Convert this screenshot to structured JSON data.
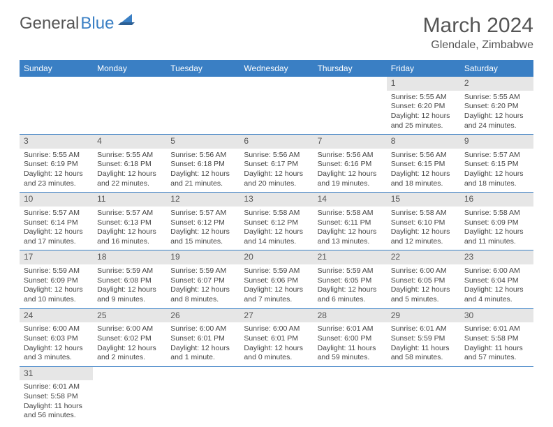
{
  "logo": {
    "text1": "General",
    "text2": "Blue"
  },
  "title": "March 2024",
  "location": "Glendale, Zimbabwe",
  "colors": {
    "headerBg": "#3a7fc4",
    "headerText": "#ffffff",
    "dayNumBg": "#e6e6e6",
    "bodyText": "#444444",
    "border": "#3a7fc4"
  },
  "weekdays": [
    "Sunday",
    "Monday",
    "Tuesday",
    "Wednesday",
    "Thursday",
    "Friday",
    "Saturday"
  ],
  "weeks": [
    [
      null,
      null,
      null,
      null,
      null,
      {
        "n": "1",
        "sr": "5:55 AM",
        "ss": "6:20 PM",
        "dl": "12 hours and 25 minutes."
      },
      {
        "n": "2",
        "sr": "5:55 AM",
        "ss": "6:20 PM",
        "dl": "12 hours and 24 minutes."
      }
    ],
    [
      {
        "n": "3",
        "sr": "5:55 AM",
        "ss": "6:19 PM",
        "dl": "12 hours and 23 minutes."
      },
      {
        "n": "4",
        "sr": "5:55 AM",
        "ss": "6:18 PM",
        "dl": "12 hours and 22 minutes."
      },
      {
        "n": "5",
        "sr": "5:56 AM",
        "ss": "6:18 PM",
        "dl": "12 hours and 21 minutes."
      },
      {
        "n": "6",
        "sr": "5:56 AM",
        "ss": "6:17 PM",
        "dl": "12 hours and 20 minutes."
      },
      {
        "n": "7",
        "sr": "5:56 AM",
        "ss": "6:16 PM",
        "dl": "12 hours and 19 minutes."
      },
      {
        "n": "8",
        "sr": "5:56 AM",
        "ss": "6:15 PM",
        "dl": "12 hours and 18 minutes."
      },
      {
        "n": "9",
        "sr": "5:57 AM",
        "ss": "6:15 PM",
        "dl": "12 hours and 18 minutes."
      }
    ],
    [
      {
        "n": "10",
        "sr": "5:57 AM",
        "ss": "6:14 PM",
        "dl": "12 hours and 17 minutes."
      },
      {
        "n": "11",
        "sr": "5:57 AM",
        "ss": "6:13 PM",
        "dl": "12 hours and 16 minutes."
      },
      {
        "n": "12",
        "sr": "5:57 AM",
        "ss": "6:12 PM",
        "dl": "12 hours and 15 minutes."
      },
      {
        "n": "13",
        "sr": "5:58 AM",
        "ss": "6:12 PM",
        "dl": "12 hours and 14 minutes."
      },
      {
        "n": "14",
        "sr": "5:58 AM",
        "ss": "6:11 PM",
        "dl": "12 hours and 13 minutes."
      },
      {
        "n": "15",
        "sr": "5:58 AM",
        "ss": "6:10 PM",
        "dl": "12 hours and 12 minutes."
      },
      {
        "n": "16",
        "sr": "5:58 AM",
        "ss": "6:09 PM",
        "dl": "12 hours and 11 minutes."
      }
    ],
    [
      {
        "n": "17",
        "sr": "5:59 AM",
        "ss": "6:09 PM",
        "dl": "12 hours and 10 minutes."
      },
      {
        "n": "18",
        "sr": "5:59 AM",
        "ss": "6:08 PM",
        "dl": "12 hours and 9 minutes."
      },
      {
        "n": "19",
        "sr": "5:59 AM",
        "ss": "6:07 PM",
        "dl": "12 hours and 8 minutes."
      },
      {
        "n": "20",
        "sr": "5:59 AM",
        "ss": "6:06 PM",
        "dl": "12 hours and 7 minutes."
      },
      {
        "n": "21",
        "sr": "5:59 AM",
        "ss": "6:05 PM",
        "dl": "12 hours and 6 minutes."
      },
      {
        "n": "22",
        "sr": "6:00 AM",
        "ss": "6:05 PM",
        "dl": "12 hours and 5 minutes."
      },
      {
        "n": "23",
        "sr": "6:00 AM",
        "ss": "6:04 PM",
        "dl": "12 hours and 4 minutes."
      }
    ],
    [
      {
        "n": "24",
        "sr": "6:00 AM",
        "ss": "6:03 PM",
        "dl": "12 hours and 3 minutes."
      },
      {
        "n": "25",
        "sr": "6:00 AM",
        "ss": "6:02 PM",
        "dl": "12 hours and 2 minutes."
      },
      {
        "n": "26",
        "sr": "6:00 AM",
        "ss": "6:01 PM",
        "dl": "12 hours and 1 minute."
      },
      {
        "n": "27",
        "sr": "6:00 AM",
        "ss": "6:01 PM",
        "dl": "12 hours and 0 minutes."
      },
      {
        "n": "28",
        "sr": "6:01 AM",
        "ss": "6:00 PM",
        "dl": "11 hours and 59 minutes."
      },
      {
        "n": "29",
        "sr": "6:01 AM",
        "ss": "5:59 PM",
        "dl": "11 hours and 58 minutes."
      },
      {
        "n": "30",
        "sr": "6:01 AM",
        "ss": "5:58 PM",
        "dl": "11 hours and 57 minutes."
      }
    ],
    [
      {
        "n": "31",
        "sr": "6:01 AM",
        "ss": "5:58 PM",
        "dl": "11 hours and 56 minutes."
      },
      null,
      null,
      null,
      null,
      null,
      null
    ]
  ],
  "labels": {
    "sunrise": "Sunrise:",
    "sunset": "Sunset:",
    "daylight": "Daylight:"
  }
}
